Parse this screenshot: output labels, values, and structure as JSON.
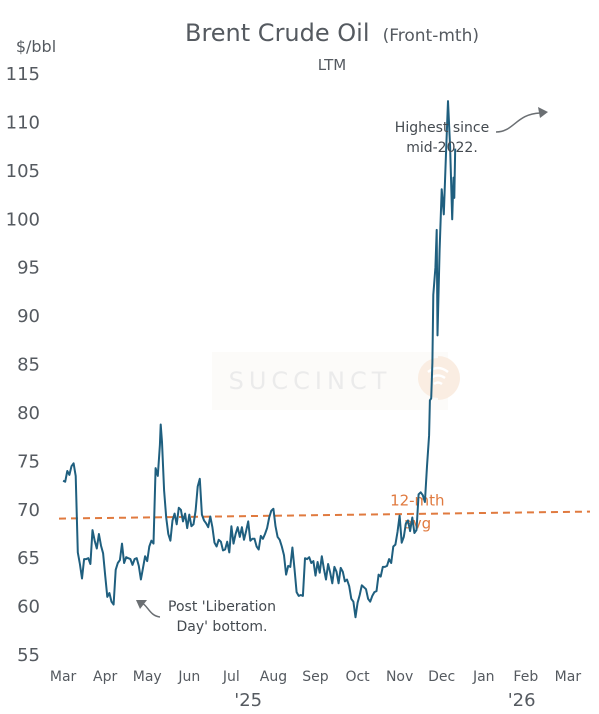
{
  "chart_data": {
    "type": "line",
    "title": "Brent Crude Oil",
    "title_suffix": "(Front-mth)",
    "subtitle": "LTM",
    "ylabel": "$/bbl",
    "ylim": [
      55,
      115
    ],
    "yticks": [
      55,
      60,
      65,
      70,
      75,
      80,
      85,
      90,
      95,
      100,
      105,
      110,
      115
    ],
    "xlim": [
      2.95,
      15.05
    ],
    "x_months": [
      {
        "label": "Mar",
        "x": 3
      },
      {
        "label": "Apr",
        "x": 4
      },
      {
        "label": "May",
        "x": 5
      },
      {
        "label": "Jun",
        "x": 6
      },
      {
        "label": "Jul",
        "x": 7
      },
      {
        "label": "Aug",
        "x": 8
      },
      {
        "label": "Sep",
        "x": 9
      },
      {
        "label": "Oct",
        "x": 10
      },
      {
        "label": "Nov",
        "x": 11
      },
      {
        "label": "Dec",
        "x": 12
      },
      {
        "label": "Jan",
        "x": 13
      },
      {
        "label": "Feb",
        "x": 14
      },
      {
        "label": "Mar",
        "x": 15
      }
    ],
    "years": [
      {
        "label": "'25",
        "x": 7.4
      },
      {
        "label": "'26",
        "x": 13.9
      }
    ],
    "grid": false,
    "series": [
      {
        "color": "#1f5f7f",
        "points": [
          [
            3.0,
            73.0
          ],
          [
            3.05,
            72.9
          ],
          [
            3.1,
            74.0
          ],
          [
            3.15,
            73.6
          ],
          [
            3.2,
            74.5
          ],
          [
            3.25,
            74.8
          ],
          [
            3.3,
            73.5
          ],
          [
            3.35,
            65.6
          ],
          [
            3.4,
            64.4
          ],
          [
            3.45,
            62.9
          ],
          [
            3.5,
            64.9
          ],
          [
            3.55,
            64.9
          ],
          [
            3.6,
            65.0
          ],
          [
            3.65,
            64.4
          ],
          [
            3.7,
            67.9
          ],
          [
            3.75,
            66.8
          ],
          [
            3.8,
            66.0
          ],
          [
            3.85,
            67.5
          ],
          [
            3.9,
            66.3
          ],
          [
            3.95,
            65.5
          ],
          [
            4.0,
            63.2
          ],
          [
            4.05,
            61.0
          ],
          [
            4.1,
            61.4
          ],
          [
            4.15,
            60.5
          ],
          [
            4.2,
            60.2
          ],
          [
            4.25,
            63.8
          ],
          [
            4.3,
            64.5
          ],
          [
            4.35,
            64.8
          ],
          [
            4.4,
            66.5
          ],
          [
            4.45,
            64.5
          ],
          [
            4.5,
            65.1
          ],
          [
            4.55,
            65.0
          ],
          [
            4.6,
            64.9
          ],
          [
            4.65,
            64.3
          ],
          [
            4.7,
            64.9
          ],
          [
            4.75,
            65.0
          ],
          [
            4.8,
            64.2
          ],
          [
            4.85,
            62.8
          ],
          [
            4.9,
            64.0
          ],
          [
            4.95,
            65.2
          ],
          [
            5.0,
            64.7
          ],
          [
            5.05,
            66.2
          ],
          [
            5.1,
            66.8
          ],
          [
            5.15,
            66.5
          ],
          [
            5.2,
            74.3
          ],
          [
            5.25,
            73.5
          ],
          [
            5.3,
            76.7
          ],
          [
            5.32,
            78.8
          ],
          [
            5.35,
            77.0
          ],
          [
            5.4,
            72.0
          ],
          [
            5.45,
            69.2
          ],
          [
            5.5,
            67.5
          ],
          [
            5.55,
            66.8
          ],
          [
            5.6,
            68.9
          ],
          [
            5.65,
            69.6
          ],
          [
            5.7,
            68.5
          ],
          [
            5.75,
            70.2
          ],
          [
            5.8,
            70.0
          ],
          [
            5.85,
            68.8
          ],
          [
            5.9,
            69.6
          ],
          [
            5.95,
            68.1
          ],
          [
            6.0,
            69.5
          ],
          [
            6.05,
            68.3
          ],
          [
            6.1,
            68.5
          ],
          [
            6.15,
            69.9
          ],
          [
            6.2,
            72.4
          ],
          [
            6.25,
            73.2
          ],
          [
            6.3,
            69.5
          ],
          [
            6.35,
            68.9
          ],
          [
            6.4,
            68.6
          ],
          [
            6.45,
            68.2
          ],
          [
            6.5,
            69.3
          ],
          [
            6.55,
            68.2
          ],
          [
            6.6,
            66.6
          ],
          [
            6.65,
            66.2
          ],
          [
            6.7,
            66.9
          ],
          [
            6.75,
            66.7
          ],
          [
            6.8,
            65.8
          ],
          [
            6.85,
            65.9
          ],
          [
            6.9,
            66.7
          ],
          [
            6.95,
            65.6
          ],
          [
            7.0,
            68.3
          ],
          [
            7.05,
            66.5
          ],
          [
            7.1,
            67.5
          ],
          [
            7.15,
            68.2
          ],
          [
            7.2,
            67.2
          ],
          [
            7.25,
            68.2
          ],
          [
            7.3,
            66.9
          ],
          [
            7.35,
            67.8
          ],
          [
            7.4,
            68.8
          ],
          [
            7.45,
            66.8
          ],
          [
            7.5,
            67.0
          ],
          [
            7.55,
            67.0
          ],
          [
            7.6,
            66.2
          ],
          [
            7.65,
            65.9
          ],
          [
            7.7,
            67.3
          ],
          [
            7.75,
            67.0
          ],
          [
            7.8,
            67.5
          ],
          [
            7.85,
            68.1
          ],
          [
            7.9,
            69.2
          ],
          [
            7.95,
            69.9
          ],
          [
            8.0,
            70.1
          ],
          [
            8.05,
            68.3
          ],
          [
            8.1,
            67.2
          ],
          [
            8.15,
            66.9
          ],
          [
            8.2,
            66.2
          ],
          [
            8.25,
            65.3
          ],
          [
            8.3,
            63.3
          ],
          [
            8.35,
            64.2
          ],
          [
            8.4,
            64.1
          ],
          [
            8.45,
            66.1
          ],
          [
            8.5,
            63.9
          ],
          [
            8.55,
            61.5
          ],
          [
            8.6,
            61.1
          ],
          [
            8.65,
            61.2
          ],
          [
            8.7,
            61.1
          ],
          [
            8.75,
            65.0
          ],
          [
            8.8,
            64.9
          ],
          [
            8.85,
            65.1
          ],
          [
            8.9,
            64.5
          ],
          [
            8.95,
            64.7
          ],
          [
            9.0,
            63.2
          ],
          [
            9.05,
            64.6
          ],
          [
            9.1,
            63.5
          ],
          [
            9.15,
            65.2
          ],
          [
            9.2,
            63.9
          ],
          [
            9.25,
            62.8
          ],
          [
            9.3,
            64.4
          ],
          [
            9.35,
            63.5
          ],
          [
            9.4,
            62.4
          ],
          [
            9.45,
            64.1
          ],
          [
            9.5,
            63.6
          ],
          [
            9.55,
            62.4
          ],
          [
            9.6,
            64.0
          ],
          [
            9.65,
            63.6
          ],
          [
            9.7,
            62.6
          ],
          [
            9.75,
            62.8
          ],
          [
            9.8,
            62.1
          ],
          [
            9.85,
            60.8
          ],
          [
            9.9,
            60.5
          ],
          [
            9.95,
            58.9
          ],
          [
            10.0,
            60.4
          ],
          [
            10.05,
            61.2
          ],
          [
            10.1,
            62.2
          ],
          [
            10.15,
            62.0
          ],
          [
            10.2,
            61.8
          ],
          [
            10.25,
            60.8
          ],
          [
            10.3,
            60.5
          ],
          [
            10.35,
            61.1
          ],
          [
            10.4,
            61.5
          ],
          [
            10.45,
            61.6
          ],
          [
            10.5,
            63.3
          ],
          [
            10.55,
            63.1
          ],
          [
            10.6,
            64.1
          ],
          [
            10.65,
            64.1
          ],
          [
            10.7,
            64.2
          ],
          [
            10.75,
            64.9
          ],
          [
            10.8,
            64.5
          ],
          [
            10.85,
            66.2
          ],
          [
            10.9,
            66.4
          ],
          [
            10.95,
            67.7
          ],
          [
            11.0,
            69.4
          ],
          [
            11.05,
            66.6
          ],
          [
            11.1,
            67.2
          ],
          [
            11.15,
            68.6
          ],
          [
            11.2,
            68.9
          ],
          [
            11.25,
            67.8
          ],
          [
            11.3,
            69.2
          ],
          [
            11.35,
            67.6
          ],
          [
            11.4,
            67.9
          ],
          [
            11.45,
            71.6
          ],
          [
            11.5,
            71.8
          ],
          [
            11.55,
            71.5
          ],
          [
            11.6,
            70.8
          ],
          [
            11.65,
            74.5
          ],
          [
            11.7,
            77.7
          ],
          [
            11.72,
            81.3
          ],
          [
            11.75,
            81.5
          ],
          [
            11.78,
            85.2
          ],
          [
            11.8,
            92.2
          ],
          [
            11.85,
            95.0
          ],
          [
            11.88,
            98.9
          ],
          [
            11.9,
            88.0
          ],
          [
            11.95,
            96.8
          ],
          [
            12.0,
            103.1
          ],
          [
            12.05,
            100.5
          ],
          [
            12.1,
            106.5
          ],
          [
            12.15,
            112.2
          ],
          [
            12.2,
            107.5
          ],
          [
            12.25,
            100.0
          ],
          [
            12.28,
            104.3
          ],
          [
            12.3,
            102.2
          ],
          [
            12.32,
            107.3
          ]
        ]
      }
    ],
    "avg": {
      "value": 69.5,
      "label_line1": "12-mth",
      "label_line2": "avg",
      "color": "#e07a3f"
    },
    "annotations": [
      {
        "line1": "Highest since",
        "line2": "mid-2022."
      },
      {
        "line1": "Post 'Liberation",
        "line2": "Day' bottom."
      }
    ],
    "watermark": "SUCCINCT"
  }
}
